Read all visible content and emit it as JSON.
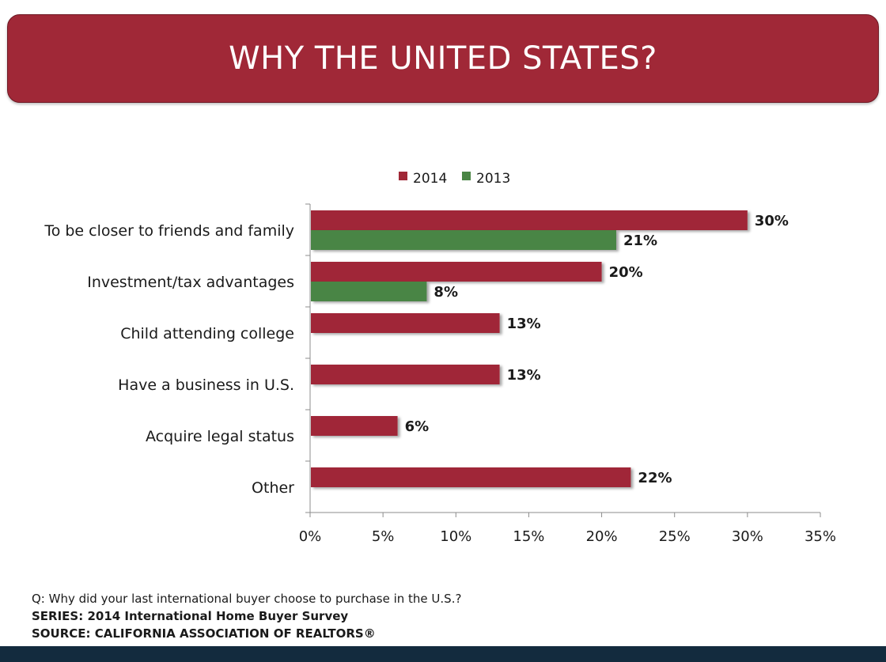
{
  "title": "WHY THE UNITED STATES?",
  "colors": {
    "banner": "#a02837",
    "series_2014": "#a02837",
    "series_2013": "#4a8545",
    "bottom_bar": "#132b3e"
  },
  "chart_data": {
    "type": "bar",
    "orientation": "horizontal",
    "categories": [
      "To be closer to friends and family",
      "Investment/tax advantages",
      "Child attending college",
      "Have a business in U.S.",
      "Acquire legal status",
      "Other"
    ],
    "series": [
      {
        "name": "2014",
        "color": "#a02837",
        "values": [
          30,
          20,
          13,
          13,
          6,
          22
        ],
        "labels": [
          "30%",
          "20%",
          "13%",
          "13%",
          "6%",
          "22%"
        ]
      },
      {
        "name": "2013",
        "color": "#4a8545",
        "values": [
          21,
          8,
          null,
          null,
          null,
          null
        ],
        "labels": [
          "21%",
          "8%",
          null,
          null,
          null,
          null
        ]
      }
    ],
    "x_ticks": [
      "0%",
      "5%",
      "10%",
      "15%",
      "20%",
      "25%",
      "30%",
      "35%"
    ],
    "xlim": [
      0,
      35
    ],
    "unit": "%",
    "grid": false,
    "legend_position": "top"
  },
  "footer": {
    "question": "Q: Why did your last international buyer choose to purchase in the U.S.?",
    "series": "SERIES: 2014 International Home Buyer Survey",
    "source": "SOURCE:  CALIFORNIA ASSOCIATION OF REALTORS®"
  }
}
